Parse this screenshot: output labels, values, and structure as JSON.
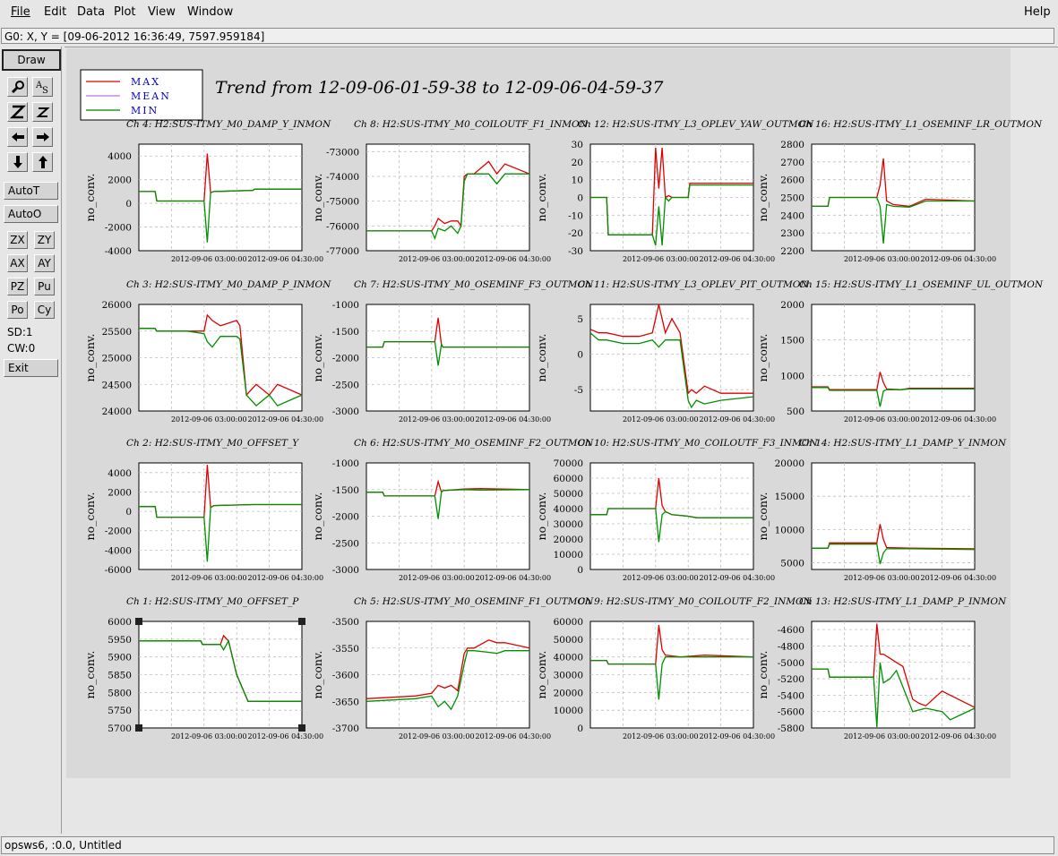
{
  "menu": {
    "file": "File",
    "edit": "Edit",
    "data": "Data",
    "plot": "Plot",
    "view": "View",
    "window": "Window",
    "help": "Help"
  },
  "coord_readout": "G0: X, Y = [09-06-2012 16:36:49, 7597.959184]",
  "toolbar": {
    "draw": "Draw",
    "autot": "AutoT",
    "autoo": "AutoO",
    "zx": "ZX",
    "zy": "ZY",
    "ax": "AX",
    "ay": "AY",
    "pz": "PZ",
    "pu": "Pu",
    "po": "Po",
    "cy": "Cy",
    "sd": "SD:1",
    "cw": "CW:0",
    "exit": "Exit",
    "icons": [
      "pointer-icon",
      "text-icon",
      "zoom-in-icon",
      "zoom-out-icon",
      "pan-left-icon",
      "pan-right-icon",
      "pan-down-icon",
      "pan-up-icon"
    ]
  },
  "plot": {
    "title": "Trend from 12-09-06-01-59-38 to 12-09-06-04-59-37",
    "legend": [
      {
        "name": "MAX",
        "color": "#e00000"
      },
      {
        "name": "MEAN",
        "color": "#c070d0"
      },
      {
        "name": "MIN",
        "color": "#008000"
      }
    ],
    "ylabel": "no_conv.",
    "xticks": [
      "2012-09-06 03:00:00",
      "2012-09-06 04:30:00"
    ],
    "colors": {
      "max": "#e00000",
      "min": "#009000",
      "grid": "#bfbfbf"
    }
  },
  "chart_data": [
    {
      "type": "line",
      "title": "Ch 4: H2:SUS-ITMY_M0_DAMP_Y_INMON",
      "ylabel": "no_conv.",
      "ylim": [
        -4000,
        5000
      ],
      "yticks": [
        "4000",
        "2000",
        "0",
        "-2000",
        "-4000"
      ],
      "x": [
        0,
        0.1,
        0.11,
        0.4,
        0.42,
        0.44,
        0.46,
        0.7,
        0.71,
        1
      ],
      "min": [
        1000,
        1000,
        200,
        200,
        -3300,
        900,
        1000,
        1100,
        1200,
        1200
      ],
      "max": [
        1000,
        1000,
        200,
        200,
        4200,
        900,
        1000,
        1100,
        1200,
        1200
      ],
      "selected": false
    },
    {
      "type": "line",
      "title": "Ch 8: H2:SUS-ITMY_M0_COILOUTF_F1_INMON",
      "ylabel": "no_conv.",
      "ylim": [
        -77000,
        -72700
      ],
      "yticks": [
        "-73000",
        "-74000",
        "-75000",
        "-76000",
        "-77000"
      ],
      "x": [
        0,
        0.3,
        0.4,
        0.42,
        0.44,
        0.48,
        0.52,
        0.56,
        0.58,
        0.6,
        0.62,
        0.66,
        0.75,
        0.8,
        0.85,
        1
      ],
      "min": [
        -76200,
        -76200,
        -76200,
        -76500,
        -76100,
        -76200,
        -76000,
        -76300,
        -76000,
        -74200,
        -73900,
        -73900,
        -73900,
        -74300,
        -73900,
        -73900
      ],
      "max": [
        -76200,
        -76200,
        -76200,
        -76000,
        -75700,
        -75900,
        -75800,
        -75800,
        -76000,
        -74000,
        -73900,
        -73900,
        -73400,
        -73900,
        -73500,
        -73900
      ],
      "selected": false
    },
    {
      "type": "line",
      "title": "Ch 12: H2:SUS-ITMY_L3_OPLEV_YAW_OUTMON",
      "ylabel": "no_conv.",
      "ylim": [
        -30,
        30
      ],
      "yticks": [
        "30",
        "20",
        "10",
        "0",
        "-10",
        "-20",
        "-30"
      ],
      "x": [
        0,
        0.1,
        0.11,
        0.38,
        0.4,
        0.42,
        0.44,
        0.46,
        0.48,
        0.5,
        0.55,
        0.6,
        0.61,
        1
      ],
      "min": [
        0,
        0,
        -21,
        -21,
        -27,
        -5,
        -27,
        0,
        -2,
        0,
        0,
        0,
        7,
        7
      ],
      "max": [
        0,
        0,
        -21,
        -21,
        28,
        5,
        28,
        0,
        1,
        0,
        0,
        0,
        8,
        8
      ],
      "selected": false
    },
    {
      "type": "line",
      "title": "Ch 16: H2:SUS-ITMY_L1_OSEMINF_LR_OUTMON",
      "ylabel": "no_conv.",
      "ylim": [
        2200,
        2800
      ],
      "yticks": [
        "2800",
        "2700",
        "2600",
        "2500",
        "2400",
        "2300",
        "2200"
      ],
      "x": [
        0,
        0.1,
        0.11,
        0.4,
        0.42,
        0.44,
        0.46,
        0.5,
        0.6,
        0.7,
        1
      ],
      "min": [
        2450,
        2450,
        2500,
        2500,
        2450,
        2240,
        2460,
        2450,
        2445,
        2480,
        2480
      ],
      "max": [
        2450,
        2450,
        2500,
        2500,
        2570,
        2720,
        2480,
        2460,
        2450,
        2490,
        2480
      ],
      "selected": false
    },
    {
      "type": "line",
      "title": "Ch 3: H2:SUS-ITMY_M0_DAMP_P_INMON",
      "ylabel": "no_conv.",
      "ylim": [
        24000,
        26000
      ],
      "yticks": [
        "26000",
        "25500",
        "25000",
        "24500",
        "24000"
      ],
      "x": [
        0,
        0.1,
        0.11,
        0.3,
        0.4,
        0.42,
        0.45,
        0.5,
        0.6,
        0.62,
        0.66,
        0.72,
        0.8,
        0.85,
        1
      ],
      "min": [
        25550,
        25550,
        25500,
        25500,
        25450,
        25300,
        25200,
        25400,
        25400,
        25350,
        24300,
        24100,
        24300,
        24100,
        24300
      ],
      "max": [
        25550,
        25550,
        25500,
        25500,
        25500,
        25800,
        25700,
        25600,
        25700,
        25600,
        24300,
        24500,
        24300,
        24500,
        24300
      ],
      "selected": false
    },
    {
      "type": "line",
      "title": "Ch 7: H2:SUS-ITMY_M0_OSEMINF_F3_OUTMON",
      "ylabel": "no_conv.",
      "ylim": [
        -3000,
        -1000
      ],
      "yticks": [
        "-1000",
        "-1500",
        "-2000",
        "-2500",
        "-3000"
      ],
      "x": [
        0,
        0.1,
        0.11,
        0.42,
        0.44,
        0.46,
        0.47,
        0.5,
        1
      ],
      "min": [
        -1800,
        -1800,
        -1700,
        -1700,
        -2150,
        -1750,
        -1800,
        -1800,
        -1800
      ],
      "max": [
        -1800,
        -1800,
        -1700,
        -1700,
        -1250,
        -1750,
        -1800,
        -1800,
        -1800
      ],
      "selected": false
    },
    {
      "type": "line",
      "title": "Ch 11: H2:SUS-ITMY_L3_OPLEV_PIT_OUTMON",
      "ylabel": "no_conv.",
      "ylim": [
        -8,
        7
      ],
      "yticks": [
        "5",
        "0",
        "-5"
      ],
      "x": [
        0,
        0.05,
        0.1,
        0.2,
        0.3,
        0.38,
        0.42,
        0.46,
        0.5,
        0.55,
        0.6,
        0.62,
        0.65,
        0.7,
        0.8,
        1
      ],
      "min": [
        3,
        2,
        2,
        1.5,
        1.5,
        2,
        1,
        2,
        2,
        2,
        -6.5,
        -7.5,
        -6.5,
        -7,
        -6.5,
        -6
      ],
      "max": [
        3.5,
        3,
        3,
        2.5,
        2.5,
        3,
        7,
        3,
        5,
        3,
        -5.5,
        -5,
        -5.5,
        -4.5,
        -5.5,
        -5.5
      ],
      "selected": false
    },
    {
      "type": "line",
      "title": "Ch 15: H2:SUS-ITMY_L1_OSEMINF_UL_OUTMON",
      "ylabel": "no_conv.",
      "ylim": [
        500,
        2000
      ],
      "yticks": [
        "2000",
        "1500",
        "1000",
        "500"
      ],
      "x": [
        0,
        0.1,
        0.11,
        0.4,
        0.42,
        0.44,
        0.46,
        0.55,
        0.6,
        1
      ],
      "min": [
        830,
        830,
        790,
        790,
        560,
        780,
        800,
        800,
        810,
        810
      ],
      "max": [
        840,
        840,
        800,
        800,
        1050,
        900,
        810,
        800,
        820,
        820
      ],
      "selected": false
    },
    {
      "type": "line",
      "title": "Ch 2: H2:SUS-ITMY_M0_OFFSET_Y",
      "ylabel": "no_conv.",
      "ylim": [
        -6000,
        5000
      ],
      "yticks": [
        "4000",
        "2000",
        "0",
        "-2000",
        "-4000",
        "-6000"
      ],
      "x": [
        0,
        0.1,
        0.11,
        0.4,
        0.42,
        0.44,
        0.46,
        0.7,
        0.71,
        1
      ],
      "min": [
        500,
        500,
        -600,
        -600,
        -5200,
        400,
        600,
        700,
        700,
        700
      ],
      "max": [
        500,
        500,
        -600,
        -600,
        4800,
        400,
        600,
        700,
        700,
        700
      ],
      "selected": false
    },
    {
      "type": "line",
      "title": "Ch 6: H2:SUS-ITMY_M0_OSEMINF_F2_OUTMON",
      "ylabel": "no_conv.",
      "ylim": [
        -3000,
        -1000
      ],
      "yticks": [
        "-1000",
        "-1500",
        "-2000",
        "-2500",
        "-3000"
      ],
      "x": [
        0,
        0.1,
        0.11,
        0.42,
        0.44,
        0.46,
        0.47,
        0.6,
        0.7,
        1
      ],
      "min": [
        -1550,
        -1550,
        -1620,
        -1620,
        -2050,
        -1550,
        -1520,
        -1500,
        -1510,
        -1500
      ],
      "max": [
        -1550,
        -1550,
        -1620,
        -1620,
        -1350,
        -1550,
        -1520,
        -1490,
        -1480,
        -1500
      ],
      "selected": false
    },
    {
      "type": "line",
      "title": "Ch 10: H2:SUS-ITMY_M0_COILOUTF_F3_INMON",
      "ylabel": "no_conv.",
      "ylim": [
        0,
        70000
      ],
      "yticks": [
        "70000",
        "60000",
        "50000",
        "40000",
        "30000",
        "20000",
        "10000",
        "0"
      ],
      "x": [
        0,
        0.1,
        0.11,
        0.4,
        0.42,
        0.44,
        0.46,
        0.5,
        0.6,
        0.65,
        1
      ],
      "min": [
        36000,
        36000,
        40000,
        40000,
        18000,
        36000,
        38000,
        36000,
        35000,
        34000,
        34000
      ],
      "max": [
        36000,
        36000,
        40000,
        40000,
        60000,
        42000,
        38000,
        36000,
        35000,
        34000,
        34000
      ],
      "selected": false
    },
    {
      "type": "line",
      "title": "Ch 14: H2:SUS-ITMY_L1_DAMP_Y_INMON",
      "ylabel": "no_conv.",
      "ylim": [
        4000,
        20000
      ],
      "yticks": [
        "20000",
        "15000",
        "10000",
        "5000"
      ],
      "x": [
        0,
        0.1,
        0.11,
        0.4,
        0.42,
        0.44,
        0.46,
        0.6,
        1
      ],
      "min": [
        7200,
        7200,
        7800,
        7800,
        4800,
        6500,
        7100,
        7100,
        7000
      ],
      "max": [
        7200,
        7200,
        8000,
        8000,
        10800,
        8500,
        7300,
        7200,
        7100
      ],
      "selected": false
    },
    {
      "type": "line",
      "title": "Ch 1: H2:SUS-ITMY_M0_OFFSET_P",
      "ylabel": "no_conv.",
      "ylim": [
        5700,
        6000
      ],
      "yticks": [
        "6000",
        "5950",
        "5900",
        "5850",
        "5800",
        "5750",
        "5700"
      ],
      "x": [
        0,
        0.38,
        0.39,
        0.5,
        0.52,
        0.55,
        0.6,
        0.67,
        0.68,
        1
      ],
      "min": [
        5945,
        5945,
        5935,
        5935,
        5920,
        5945,
        5850,
        5775,
        5775,
        5775
      ],
      "max": [
        5945,
        5945,
        5935,
        5935,
        5960,
        5945,
        5850,
        5775,
        5775,
        5775
      ],
      "selected": true
    },
    {
      "type": "line",
      "title": "Ch 5: H2:SUS-ITMY_M0_OSEMINF_F1_OUTMON",
      "ylabel": "no_conv.",
      "ylim": [
        -3700,
        -3500
      ],
      "yticks": [
        "-3500",
        "-3550",
        "-3600",
        "-3650",
        "-3700"
      ],
      "x": [
        0,
        0.3,
        0.4,
        0.44,
        0.48,
        0.52,
        0.56,
        0.6,
        0.62,
        0.66,
        0.75,
        0.8,
        0.85,
        1
      ],
      "min": [
        -3650,
        -3645,
        -3640,
        -3660,
        -3650,
        -3665,
        -3640,
        -3580,
        -3555,
        -3555,
        -3558,
        -3560,
        -3555,
        -3555
      ],
      "max": [
        -3645,
        -3640,
        -3635,
        -3620,
        -3625,
        -3620,
        -3630,
        -3560,
        -3550,
        -3550,
        -3535,
        -3540,
        -3540,
        -3550
      ],
      "selected": false
    },
    {
      "type": "line",
      "title": "Ch 9: H2:SUS-ITMY_M0_COILOUTF_F2_INMON",
      "ylabel": "no_conv.",
      "ylim": [
        0,
        60000
      ],
      "yticks": [
        "60000",
        "50000",
        "40000",
        "30000",
        "20000",
        "10000",
        "0"
      ],
      "x": [
        0,
        0.1,
        0.11,
        0.4,
        0.42,
        0.44,
        0.46,
        0.55,
        0.7,
        1
      ],
      "min": [
        38000,
        38000,
        36000,
        36000,
        16000,
        36000,
        40000,
        40000,
        40000,
        40000
      ],
      "max": [
        38000,
        38000,
        36000,
        36000,
        58000,
        44000,
        41000,
        40000,
        41000,
        40000
      ],
      "selected": false
    },
    {
      "type": "line",
      "title": "Ch 13: H2:SUS-ITMY_L1_DAMP_P_INMON",
      "ylabel": "no_conv.",
      "ylim": [
        -5800,
        -4500
      ],
      "yticks": [
        "-4600",
        "-4800",
        "-5000",
        "-5200",
        "-5400",
        "-5600",
        "-5800"
      ],
      "x": [
        0,
        0.1,
        0.11,
        0.38,
        0.4,
        0.42,
        0.44,
        0.48,
        0.52,
        0.56,
        0.62,
        0.66,
        0.7,
        0.8,
        0.85,
        1
      ],
      "min": [
        -5080,
        -5080,
        -5180,
        -5180,
        -5790,
        -5000,
        -5250,
        -5200,
        -5100,
        -5300,
        -5600,
        -5580,
        -5560,
        -5600,
        -5700,
        -5560
      ],
      "max": [
        -5080,
        -5080,
        -5180,
        -5180,
        -4530,
        -4900,
        -4900,
        -4950,
        -5000,
        -5050,
        -5450,
        -5500,
        -5530,
        -5350,
        -5400,
        -5550
      ],
      "selected": false
    }
  ],
  "status": "opsws6, :0.0, Untitled"
}
